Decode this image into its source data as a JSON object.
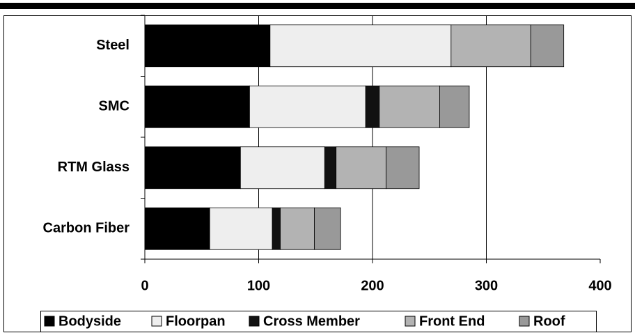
{
  "chart_data": {
    "type": "bar",
    "orientation": "horizontal",
    "stacked": true,
    "categories": [
      "Steel",
      "SMC",
      "RTM Glass",
      "Carbon Fiber"
    ],
    "series": [
      {
        "name": "Bodyside",
        "color": "#000000",
        "values": [
          110,
          92,
          84,
          57
        ]
      },
      {
        "name": "Floorpan",
        "color": "#eeeeee",
        "values": [
          159,
          102,
          74,
          55
        ]
      },
      {
        "name": "Cross Member",
        "color": "#111111",
        "values": [
          0,
          12,
          10,
          7
        ]
      },
      {
        "name": "Front End",
        "color": "#b3b3b3",
        "values": [
          70,
          53,
          44,
          30
        ]
      },
      {
        "name": "Roof",
        "color": "#999999",
        "values": [
          29,
          26,
          29,
          23
        ]
      }
    ],
    "xlim": [
      0,
      400
    ],
    "xticks": [
      0,
      100,
      200,
      300,
      400
    ],
    "grid": true,
    "legend": "bottom"
  }
}
